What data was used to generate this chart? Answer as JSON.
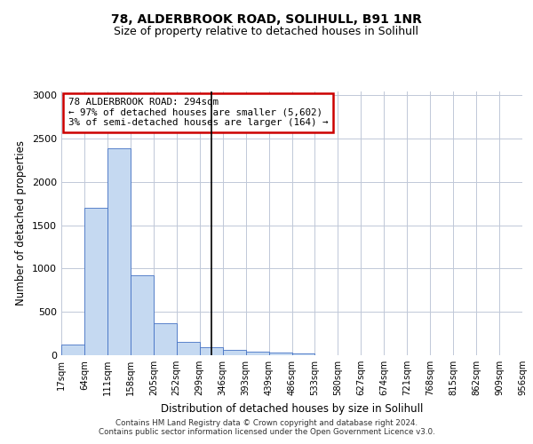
{
  "title": "78, ALDERBROOK ROAD, SOLIHULL, B91 1NR",
  "subtitle": "Size of property relative to detached houses in Solihull",
  "xlabel": "Distribution of detached houses by size in Solihull",
  "ylabel": "Number of detached properties",
  "bar_values": [
    120,
    1700,
    2390,
    920,
    370,
    150,
    90,
    60,
    40,
    30,
    25,
    5,
    5,
    4,
    3,
    2,
    2,
    2,
    1,
    1
  ],
  "tick_labels": [
    "17sqm",
    "64sqm",
    "111sqm",
    "158sqm",
    "205sqm",
    "252sqm",
    "299sqm",
    "346sqm",
    "393sqm",
    "439sqm",
    "486sqm",
    "533sqm",
    "580sqm",
    "627sqm",
    "674sqm",
    "721sqm",
    "768sqm",
    "815sqm",
    "862sqm",
    "909sqm",
    "956sqm"
  ],
  "bar_color": "#c5d9f1",
  "bar_edge_color": "#4472c4",
  "background_color": "#ffffff",
  "grid_color": "#c0c8d8",
  "vline_pos": 6.5,
  "vline_color": "#000000",
  "annotation_text": "78 ALDERBROOK ROAD: 294sqm\n← 97% of detached houses are smaller (5,602)\n3% of semi-detached houses are larger (164) →",
  "annotation_box_edgecolor": "#cc0000",
  "annotation_fill": "#ffffff",
  "footer_text": "Contains HM Land Registry data © Crown copyright and database right 2024.\nContains public sector information licensed under the Open Government Licence v3.0.",
  "ylim": [
    0,
    3050
  ],
  "yticks": [
    0,
    500,
    1000,
    1500,
    2000,
    2500,
    3000
  ]
}
